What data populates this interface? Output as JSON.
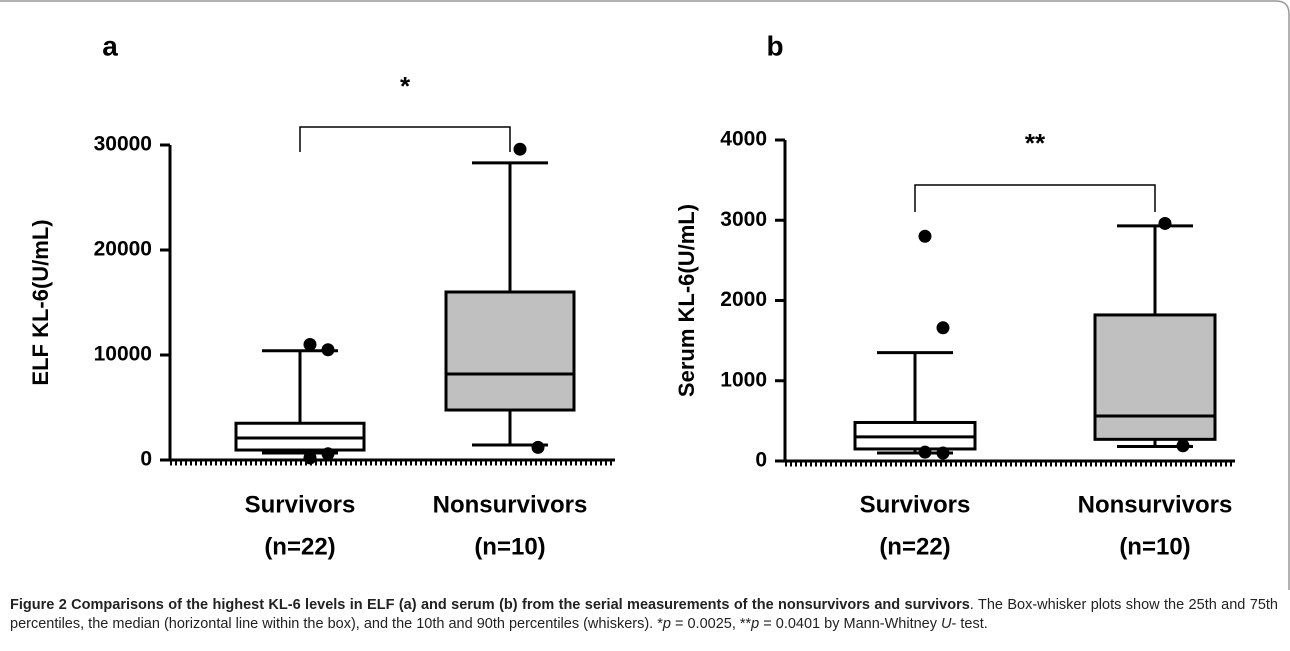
{
  "chart_data": [
    {
      "type": "box",
      "panel_label": "a",
      "ylabel": "ELF KL-6(U/mL)",
      "categories": [
        "Survivors",
        "Nonsurvivors"
      ],
      "category_counts": [
        "(n=22)",
        "(n=10)"
      ],
      "ylim": [
        0,
        30000
      ],
      "yticks": [
        0,
        10000,
        20000,
        30000
      ],
      "boxes": [
        {
          "whislo": 670,
          "q1": 950,
          "med": 2100,
          "q3": 3500,
          "whishi": 10400,
          "fliers": [
            11000,
            10500,
            200,
            600
          ],
          "color": "#ffffff"
        },
        {
          "whislo": 1430,
          "q1": 4760,
          "med": 8190,
          "q3": 16000,
          "whishi": 28300,
          "fliers": [
            29600,
            1200
          ],
          "color": "#c0c0c0"
        }
      ],
      "annotation": "*"
    },
    {
      "type": "box",
      "panel_label": "b",
      "ylabel": "Serum KL-6(U/mL)",
      "categories": [
        "Survivors",
        "Nonsurvivors"
      ],
      "category_counts": [
        "(n=22)",
        "(n=10)"
      ],
      "ylim": [
        0,
        4000
      ],
      "yticks": [
        0,
        1000,
        2000,
        3000,
        4000
      ],
      "boxes": [
        {
          "whislo": 100,
          "q1": 150,
          "med": 300,
          "q3": 480,
          "whishi": 1350,
          "fliers": [
            2800,
            1660,
            110,
            100
          ],
          "color": "#ffffff"
        },
        {
          "whislo": 180,
          "q1": 270,
          "med": 560,
          "q3": 1820,
          "whishi": 2930,
          "fliers": [
            2960,
            190
          ],
          "color": "#c0c0c0"
        }
      ],
      "annotation": "**"
    }
  ],
  "caption": {
    "title": "Figure 2 Comparisons of the highest KL-6 levels in ELF (a) and serum (b) from the serial measurements of the nonsurvivors and survivors",
    "text": [
      ". The Box-whisker plots show the 25th and 75th percentiles, the median (horizontal line within the box), and the 10th and 90th percentiles (whiskers). *",
      "p",
      " = 0.0025, **",
      "p",
      " = 0.0401 by Mann-Whitney ",
      "U",
      "- test."
    ]
  }
}
